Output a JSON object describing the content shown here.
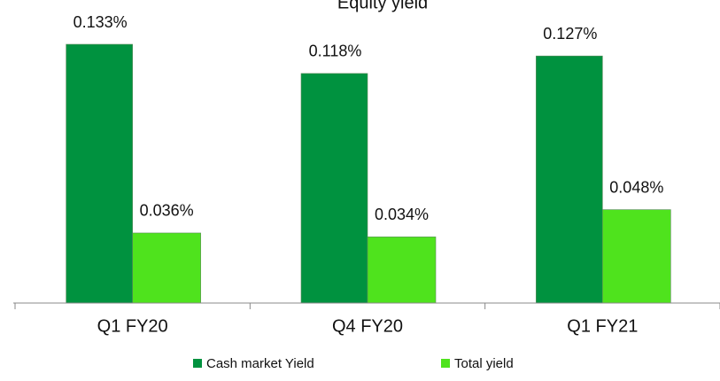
{
  "chart_data": {
    "type": "bar",
    "title": "Equity yield",
    "categories": [
      "Q1 FY20",
      "Q4 FY20",
      "Q1 FY21"
    ],
    "series": [
      {
        "name": "Cash market Yield",
        "color": "#00923f",
        "values": [
          0.133,
          0.118,
          0.127
        ],
        "value_labels": [
          "0.133%",
          "0.118%",
          "0.127%"
        ]
      },
      {
        "name": "Total yield",
        "color": "#4fe31d",
        "values": [
          0.036,
          0.034,
          0.048
        ],
        "value_labels": [
          "0.036%",
          "0.034%",
          "0.048%"
        ]
      }
    ]
  }
}
